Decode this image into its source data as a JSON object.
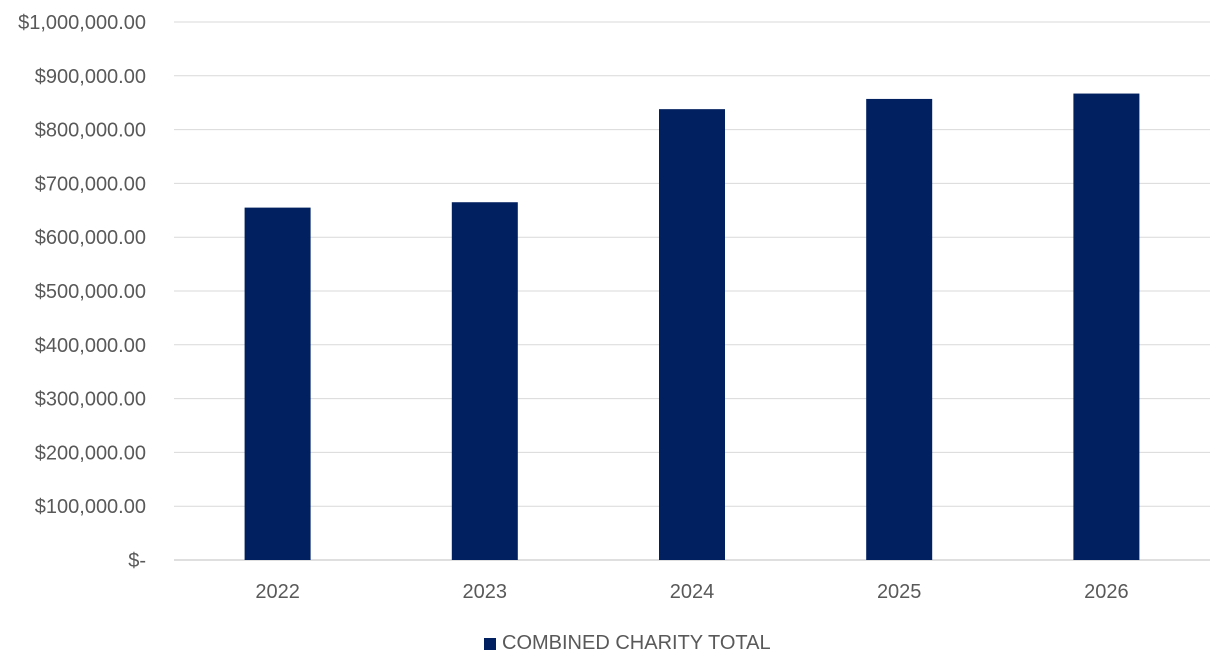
{
  "chart_data": {
    "type": "bar",
    "title": "",
    "xlabel": "",
    "ylabel": "",
    "categories": [
      "2022",
      "2023",
      "2024",
      "2025",
      "2026"
    ],
    "series": [
      {
        "name": "COMBINED CHARITY TOTAL",
        "values": [
          655000,
          665000,
          838000,
          857000,
          867000
        ]
      }
    ],
    "ylim": [
      0,
      1000000
    ],
    "y_ticks": [
      0,
      100000,
      200000,
      300000,
      400000,
      500000,
      600000,
      700000,
      800000,
      900000,
      1000000
    ],
    "y_tick_labels": [
      "$-",
      "$100,000.00",
      "$200,000.00",
      "$300,000.00",
      "$400,000.00",
      "$500,000.00",
      "$600,000.00",
      "$700,000.00",
      "$800,000.00",
      "$900,000.00",
      "$1,000,000.00"
    ],
    "grid": true,
    "legend_position": "bottom",
    "colors": {
      "bar": "#002060",
      "grid": "#d9d9d9",
      "text": "#595959"
    }
  }
}
